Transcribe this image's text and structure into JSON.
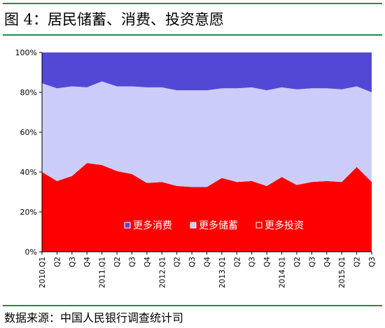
{
  "header": {
    "title": "图 4：居民储蓄、消费、投资意愿"
  },
  "footer": {
    "source": "数据来源：中国人民银行调查统计司"
  },
  "colors": {
    "consume": "#5348d6",
    "save": "#ccccf8",
    "invest": "#ff0000",
    "frame": "#1f8a4c"
  },
  "chart_data": {
    "type": "area",
    "stacked": true,
    "categories": [
      "2010.Q1",
      "Q2",
      "Q3",
      "Q4",
      "2011.Q1",
      "Q2",
      "Q3",
      "Q4",
      "2012.Q1",
      "Q2",
      "Q3",
      "Q4",
      "2013.Q1",
      "Q2",
      "Q3",
      "Q4",
      "2014.Q1",
      "Q2",
      "Q3",
      "Q4",
      "2015.Q1",
      "Q2",
      "Q3"
    ],
    "yticks": [
      "0%",
      "20%",
      "40%",
      "60%",
      "80%",
      "100%"
    ],
    "ylim": [
      0,
      100
    ],
    "series": [
      {
        "name": "更多投资",
        "color": "#ff0000",
        "values": [
          40,
          35.5,
          38,
          44.5,
          43.5,
          40.5,
          39,
          34.5,
          35,
          33,
          32.5,
          32.5,
          37,
          35,
          35.5,
          33,
          37.5,
          33.5,
          35,
          35.5,
          35,
          42.5,
          35
        ]
      },
      {
        "name": "更多储蓄",
        "color": "#ccccf8",
        "values": [
          44.5,
          46.5,
          45,
          38,
          42,
          42.5,
          44,
          48,
          47.5,
          48,
          48.5,
          48.5,
          45,
          47,
          47,
          48,
          45,
          48,
          47,
          46.5,
          46.5,
          40.5,
          45
        ]
      },
      {
        "name": "更多消费",
        "color": "#5348d6",
        "values": [
          15.5,
          18,
          17,
          17.5,
          14.5,
          17,
          17,
          17.5,
          17.5,
          19,
          19,
          19,
          18,
          18,
          17.5,
          19,
          17.5,
          18.5,
          18,
          18,
          18.5,
          17,
          20
        ]
      }
    ],
    "legend": {
      "position": "bottom-right",
      "order": [
        "更多消费",
        "更多储蓄",
        "更多投资"
      ]
    }
  }
}
